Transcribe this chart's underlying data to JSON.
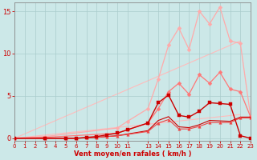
{
  "bg_color": "#cce8e8",
  "grid_color": "#aacccc",
  "xlabel": "Vent moyen/en rafales ( km/h )",
  "xlim": [
    0,
    23
  ],
  "ylim": [
    -0.3,
    16
  ],
  "yticks": [
    0,
    5,
    10,
    15
  ],
  "xticks": [
    0,
    1,
    2,
    3,
    4,
    5,
    6,
    7,
    8,
    9,
    10,
    11,
    13,
    14,
    15,
    16,
    17,
    18,
    19,
    20,
    21,
    22,
    23
  ],
  "series": [
    {
      "x": [
        0,
        22
      ],
      "y": [
        0,
        11.5
      ],
      "color": "#ffbbbb",
      "linewidth": 0.8,
      "marker": null,
      "zorder": 1
    },
    {
      "x": [
        0,
        22
      ],
      "y": [
        0,
        2.8
      ],
      "color": "#ffbbbb",
      "linewidth": 0.8,
      "marker": null,
      "zorder": 1
    },
    {
      "x": [
        0,
        3,
        10,
        11,
        13,
        14,
        15,
        16,
        17,
        18,
        19,
        20,
        21,
        22,
        23
      ],
      "y": [
        0,
        0.2,
        1.2,
        2.0,
        3.5,
        7.0,
        11.0,
        13.0,
        10.5,
        15.0,
        13.5,
        15.5,
        11.5,
        11.2,
        2.5
      ],
      "color": "#ffaaaa",
      "linewidth": 0.9,
      "marker": "D",
      "markersize": 2.5,
      "zorder": 2
    },
    {
      "x": [
        0,
        3,
        10,
        11,
        13,
        14,
        15,
        16,
        17,
        18,
        19,
        20,
        21,
        22,
        23
      ],
      "y": [
        0,
        0.1,
        0.6,
        1.0,
        1.8,
        3.5,
        5.5,
        6.5,
        5.2,
        7.5,
        6.5,
        7.8,
        5.8,
        5.5,
        2.5
      ],
      "color": "#ff7777",
      "linewidth": 0.9,
      "marker": "D",
      "markersize": 2.5,
      "zorder": 3
    },
    {
      "x": [
        0,
        3,
        5,
        6,
        7,
        8,
        9,
        10,
        11,
        13,
        14,
        15,
        16,
        17,
        18,
        19,
        20,
        21,
        22,
        23
      ],
      "y": [
        0,
        0,
        0,
        0,
        0.1,
        0.2,
        0.4,
        0.6,
        1.0,
        1.8,
        4.2,
        5.1,
        2.7,
        2.5,
        3.2,
        4.2,
        4.1,
        4.0,
        0.3,
        0.0
      ],
      "color": "#cc0000",
      "linewidth": 1.0,
      "marker": "s",
      "markersize": 2.5,
      "zorder": 4
    },
    {
      "x": [
        0,
        3,
        5,
        6,
        7,
        8,
        9,
        10,
        11,
        13,
        14,
        15,
        16,
        17,
        18,
        19,
        20,
        21,
        22,
        23
      ],
      "y": [
        0,
        0,
        0,
        0,
        0.05,
        0.1,
        0.2,
        0.3,
        0.5,
        0.9,
        2.1,
        2.55,
        1.35,
        1.25,
        1.6,
        2.1,
        2.05,
        2.0,
        2.5,
        2.5
      ],
      "color": "#cc0000",
      "linewidth": 0.8,
      "marker": null,
      "zorder": 3
    },
    {
      "x": [
        0,
        3,
        5,
        6,
        7,
        8,
        9,
        10,
        11,
        13,
        14,
        15,
        16,
        17,
        18,
        19,
        20,
        21,
        22,
        23
      ],
      "y": [
        0,
        0,
        0,
        0,
        0.05,
        0.1,
        0.2,
        0.28,
        0.45,
        0.8,
        1.8,
        2.2,
        1.1,
        1.1,
        1.4,
        1.85,
        1.85,
        1.85,
        2.4,
        2.4
      ],
      "color": "#ee4444",
      "linewidth": 0.8,
      "marker": "^",
      "markersize": 2.5,
      "zorder": 3
    }
  ],
  "tick_color": "#cc0000",
  "label_color": "#cc0000",
  "spine_color": "#888888",
  "tick_labelsize": 5.0,
  "xlabel_fontsize": 6.0
}
